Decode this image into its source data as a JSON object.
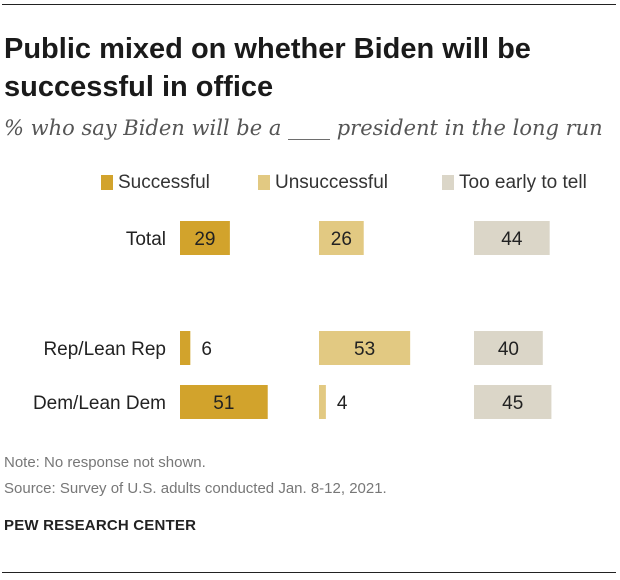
{
  "title": "Public mixed on whether Biden will be successful in office",
  "subtitle": "% who say Biden will be a ____ president in the long run",
  "note": "Note: No response not shown.",
  "source": "Source: Survey of U.S. adults conducted Jan. 8-12, 2021.",
  "brand": "PEW RESEARCH CENTER",
  "colors": {
    "Successful": "#d2a32c",
    "Unsuccessful": "#e2c982",
    "Too early to tell": "#dbd6c8"
  },
  "chart_data": {
    "type": "bar",
    "orientation": "horizontal",
    "layout": "small-multiples by response column",
    "categories": [
      "Total",
      "Rep/Lean Rep",
      "Dem/Lean Dem"
    ],
    "series": [
      {
        "name": "Successful",
        "values": [
          29,
          6,
          51
        ]
      },
      {
        "name": "Unsuccessful",
        "values": [
          26,
          53,
          4
        ]
      },
      {
        "name": "Too early to tell",
        "values": [
          44,
          40,
          45
        ]
      }
    ],
    "legend_position": "top",
    "grid": false
  }
}
